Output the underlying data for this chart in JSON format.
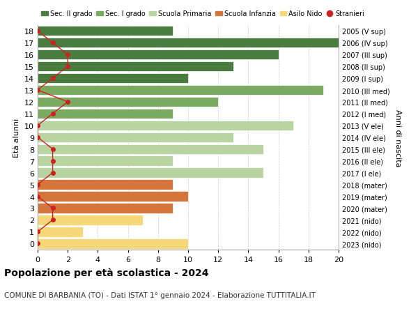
{
  "ages": [
    18,
    17,
    16,
    15,
    14,
    13,
    12,
    11,
    10,
    9,
    8,
    7,
    6,
    5,
    4,
    3,
    2,
    1,
    0
  ],
  "values": [
    9,
    20,
    16,
    13,
    10,
    19,
    12,
    9,
    17,
    13,
    15,
    9,
    15,
    9,
    10,
    9,
    7,
    3,
    10
  ],
  "categories": {
    "Sec. II grado": [
      18,
      17,
      16,
      15,
      14
    ],
    "Sec. I grado": [
      13,
      12,
      11
    ],
    "Scuola Primaria": [
      10,
      9,
      8,
      7,
      6
    ],
    "Scuola Infanzia": [
      5,
      4,
      3
    ],
    "Asilo Nido": [
      2,
      1,
      0
    ]
  },
  "colors": {
    "Sec. II grado": "#4a7c40",
    "Sec. I grado": "#7aaa60",
    "Scuola Primaria": "#b8d4a0",
    "Scuola Infanzia": "#d4763c",
    "Asilo Nido": "#f5d878"
  },
  "stranieri_color": "#cc2222",
  "stranieri_values": [
    0,
    1,
    2,
    2,
    1,
    0,
    2,
    1,
    0,
    0,
    1,
    1,
    1,
    0,
    0,
    1,
    1,
    0,
    0
  ],
  "right_labels": [
    "2005 (V sup)",
    "2006 (IV sup)",
    "2007 (III sup)",
    "2008 (II sup)",
    "2009 (I sup)",
    "2010 (III med)",
    "2011 (II med)",
    "2012 (I med)",
    "2013 (V ele)",
    "2014 (IV ele)",
    "2015 (III ele)",
    "2016 (II ele)",
    "2017 (I ele)",
    "2018 (mater)",
    "2019 (mater)",
    "2020 (mater)",
    "2021 (nido)",
    "2022 (nido)",
    "2023 (nido)"
  ],
  "title_bold": "Popolazione per età scolastica - 2024",
  "subtitle": "COMUNE DI BARBANIA (TO) - Dati ISTAT 1° gennaio 2024 - Elaborazione TUTTITALIA.IT",
  "ylabel_left": "Età alunni",
  "ylabel_right": "Anni di nascita",
  "legend_labels": [
    "Sec. II grado",
    "Sec. I grado",
    "Scuola Primaria",
    "Scuola Infanzia",
    "Asilo Nido",
    "Stranieri"
  ],
  "xticks": [
    0,
    2,
    4,
    6,
    8,
    10,
    12,
    14,
    16,
    18,
    20
  ],
  "xlim": [
    0,
    20
  ],
  "bar_height": 0.85,
  "grid_color": "#cccccc",
  "bg_color": "#ffffff",
  "stranieri_linewidth": 1.0,
  "stranieri_markersize": 4
}
